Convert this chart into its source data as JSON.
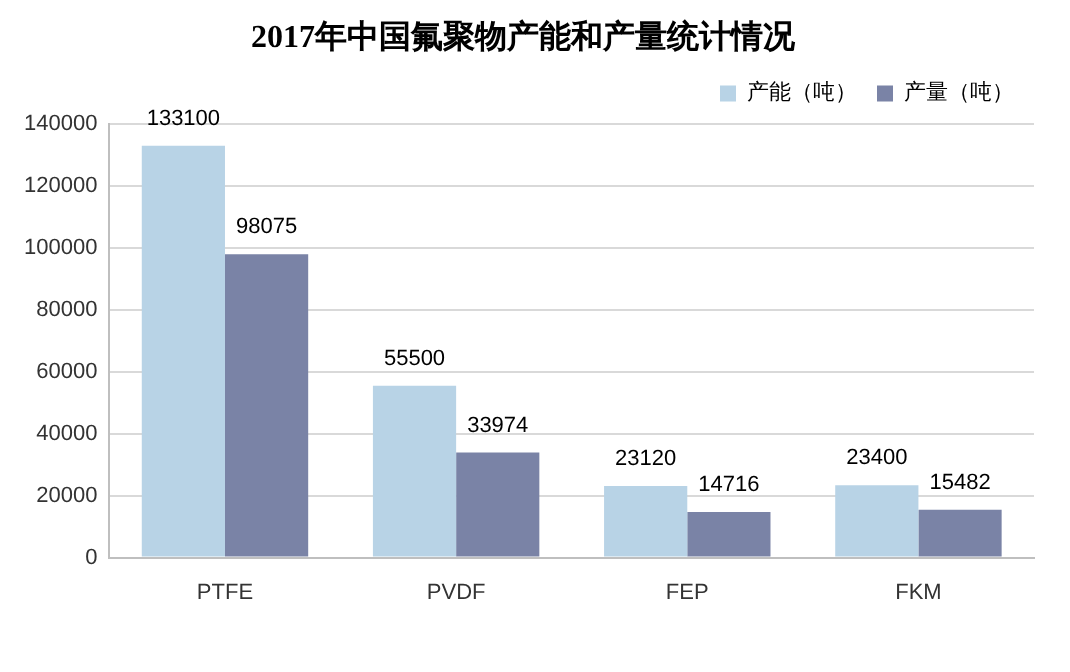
{
  "chart_data": {
    "type": "bar",
    "title": "2017年中国氟聚物产能和产量统计情况",
    "categories": [
      "PTFE",
      "PVDF",
      "FEP",
      "FKM"
    ],
    "series": [
      {
        "name": "产能（吨）",
        "color": "#b8d3e6",
        "values": [
          133100,
          55500,
          23120,
          23400
        ]
      },
      {
        "name": "产量（吨）",
        "color": "#7a83a6",
        "values": [
          98075,
          33974,
          14716,
          15482
        ]
      }
    ],
    "ylim": [
      0,
      140000
    ],
    "yticks": [
      0,
      20000,
      40000,
      60000,
      80000,
      100000,
      120000,
      140000
    ],
    "grid": "y",
    "legend": "top right",
    "data_labels": true
  }
}
